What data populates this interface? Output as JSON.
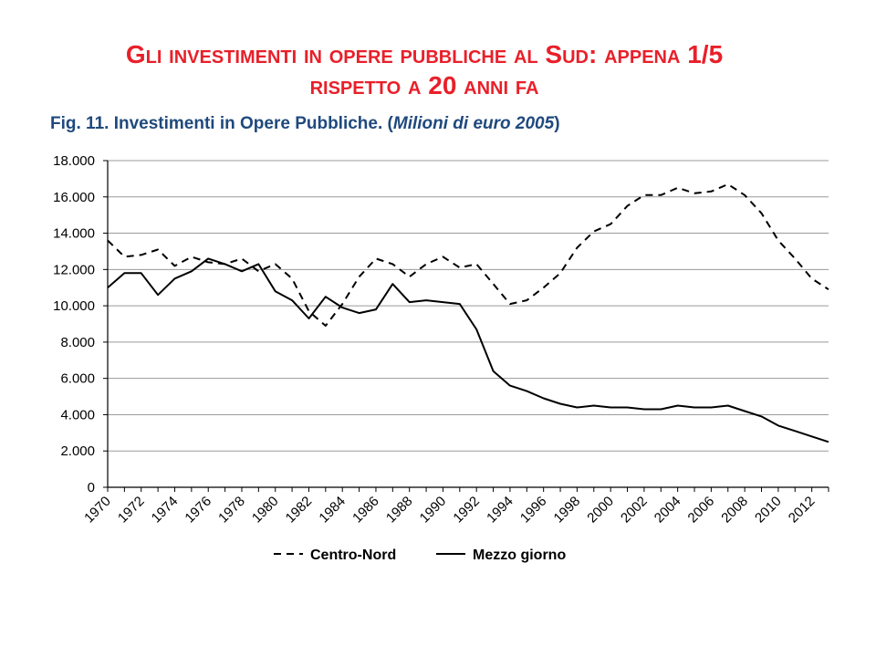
{
  "header": {
    "title_line1": "Gli investimenti in opere pubbliche al Sud: appena 1/5",
    "title_line2": "rispetto a 20 anni fa",
    "subtitle_main": "Fig. 11. Investimenti in Opere Pubbliche. (",
    "subtitle_italic": "Milioni di euro 2005",
    "subtitle_end": ")"
  },
  "chart_data": {
    "type": "line",
    "title": "Fig. 11. Investimenti in Opere Pubbliche. (Milioni di euro 2005)",
    "xlabel": "",
    "ylabel": "",
    "ylim": [
      0,
      18000
    ],
    "yticks": [
      0,
      2000,
      4000,
      6000,
      8000,
      10000,
      12000,
      14000,
      16000,
      18000
    ],
    "ytick_labels": [
      "0",
      "2.000",
      "4.000",
      "6.000",
      "8.000",
      "10.000",
      "12.000",
      "14.000",
      "16.000",
      "18.000"
    ],
    "xtick_labels": [
      "1970",
      "1972",
      "1974",
      "1976",
      "1978",
      "1980",
      "1982",
      "1984",
      "1986",
      "1988",
      "1990",
      "1992",
      "1994",
      "1996",
      "1998",
      "2000",
      "2002",
      "2004",
      "2006",
      "2008",
      "2010",
      "2012"
    ],
    "grid": true,
    "legend": "bottom",
    "x": [
      1970,
      1971,
      1972,
      1973,
      1974,
      1975,
      1976,
      1977,
      1978,
      1979,
      1980,
      1981,
      1982,
      1983,
      1984,
      1985,
      1986,
      1987,
      1988,
      1989,
      1990,
      1991,
      1992,
      1993,
      1994,
      1995,
      1996,
      1997,
      1998,
      1999,
      2000,
      2001,
      2002,
      2003,
      2004,
      2005,
      2006,
      2007,
      2008,
      2009,
      2010,
      2011,
      2012,
      2013
    ],
    "series": [
      {
        "name": "Centro-Nord",
        "style": "dashed",
        "values": [
          13600,
          12700,
          12800,
          13100,
          12200,
          12700,
          12400,
          12300,
          12600,
          11900,
          12300,
          11500,
          9700,
          8900,
          10100,
          11600,
          12600,
          12300,
          11600,
          12300,
          12700,
          12100,
          12300,
          11200,
          10100,
          10300,
          11000,
          11800,
          13200,
          14100,
          14500,
          15500,
          16100,
          16100,
          16500,
          16200,
          16300,
          16700,
          16100,
          15100,
          13600,
          12600,
          11500,
          10900
        ]
      },
      {
        "name": "Mezzo giorno",
        "style": "solid",
        "values": [
          11000,
          11800,
          11800,
          10600,
          11500,
          11900,
          12600,
          12300,
          11900,
          12300,
          10800,
          10300,
          9300,
          10500,
          9900,
          9600,
          9800,
          11200,
          10200,
          10300,
          10200,
          10100,
          8700,
          6400,
          5600,
          5300,
          4900,
          4600,
          4400,
          4500,
          4400,
          4400,
          4300,
          4300,
          4500,
          4400,
          4400,
          4500,
          4200,
          3900,
          3400,
          3100,
          2800,
          2500
        ]
      }
    ],
    "colors": {
      "axis": "#000000",
      "grid": "#9a9a9a",
      "line": "#000000"
    }
  }
}
